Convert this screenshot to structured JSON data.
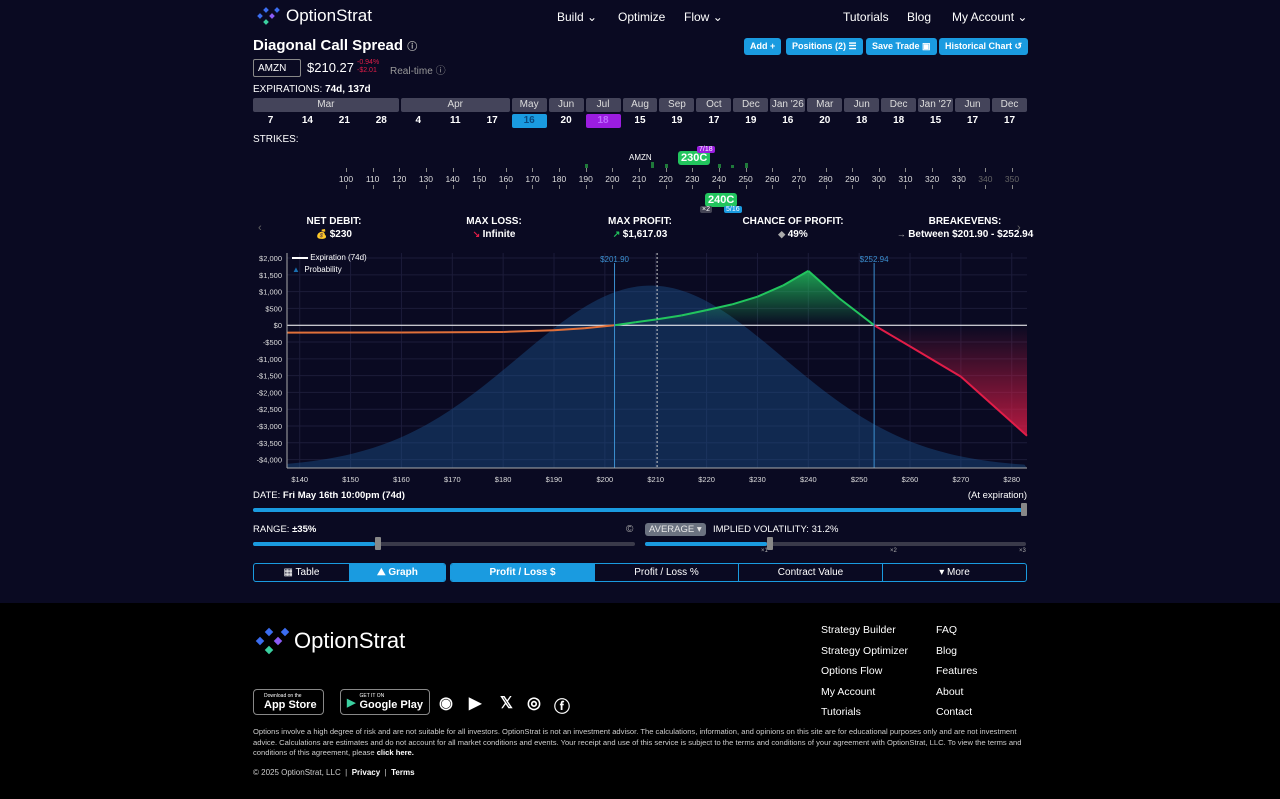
{
  "header": {
    "brand": "OptionStrat",
    "nav": [
      {
        "label": "Build",
        "chev": true
      },
      {
        "label": "Optimize"
      },
      {
        "label": "Flow",
        "chev": true
      }
    ],
    "right": [
      {
        "label": "Tutorials"
      },
      {
        "label": "Blog"
      },
      {
        "label": "My Account",
        "chev": true
      }
    ]
  },
  "strategy": {
    "title": "Diagonal Call Spread",
    "actions": [
      "Add +",
      "Positions (2) ☰",
      "Save Trade ▣",
      "Historical Chart ↺"
    ]
  },
  "ticker": {
    "symbol": "AMZN",
    "price": "$210.27",
    "change_pct": "-0.94%",
    "change_abs": "-$2.01",
    "mode": "Real-time"
  },
  "expirations": {
    "label": "EXPIRATIONS:",
    "value": "74d, 137d",
    "months": [
      {
        "m": "Mar",
        "span": 4
      },
      {
        "m": "Apr",
        "span": 3
      },
      {
        "m": "May",
        "span": 1
      },
      {
        "m": "Jun",
        "span": 1
      },
      {
        "m": "Jul",
        "span": 1
      },
      {
        "m": "Aug",
        "span": 1
      },
      {
        "m": "Sep",
        "span": 1
      },
      {
        "m": "Oct",
        "span": 1
      },
      {
        "m": "Dec",
        "span": 1
      },
      {
        "m": "Jan '26",
        "span": 1
      },
      {
        "m": "Mar",
        "span": 1
      },
      {
        "m": "Jun",
        "span": 1
      },
      {
        "m": "Dec",
        "span": 1
      },
      {
        "m": "Jan '27",
        "span": 1
      },
      {
        "m": "Jun",
        "span": 1
      },
      {
        "m": "Dec",
        "span": 1
      }
    ],
    "days": [
      "7",
      "14",
      "21",
      "28",
      "4",
      "11",
      "17",
      "16",
      "20",
      "18",
      "15",
      "19",
      "17",
      "19",
      "16",
      "20",
      "18",
      "18",
      "15",
      "17",
      "17"
    ],
    "selected": {
      "7": "#1a9be0",
      "9": "#9b1de0"
    }
  },
  "strikes": {
    "label": "STRIKES:",
    "values": [
      100,
      110,
      120,
      130,
      140,
      150,
      160,
      170,
      180,
      190,
      200,
      210,
      220,
      230,
      240,
      250,
      260,
      270,
      280,
      290,
      300,
      310,
      320,
      330,
      340,
      350
    ],
    "underlying": "AMZN",
    "long_leg": "230C",
    "long_exp": "7/18",
    "short_leg": "240C",
    "short_qty": "×2",
    "short_exp": "5/16"
  },
  "stats": [
    {
      "label": "NET DEBIT:",
      "value": "$230",
      "icon": "coins-icon",
      "glyph": "💰"
    },
    {
      "label": "MAX LOSS:",
      "value": "Infinite",
      "icon": "arrow-down-icon",
      "glyph": "↘"
    },
    {
      "label": "MAX PROFIT:",
      "value": "$1,617.03",
      "icon": "arrow-up-icon",
      "glyph": "↗"
    },
    {
      "label": "CHANCE OF PROFIT:",
      "value": "49%",
      "icon": "dice-icon",
      "glyph": "◆"
    },
    {
      "label": "BREAKEVENS:",
      "value": "Between $201.90 - $252.94",
      "icon": "arrow-right-icon",
      "glyph": "→"
    }
  ],
  "chart_data": {
    "type": "line",
    "legend": [
      "Expiration (74d)",
      "Probability"
    ],
    "xlim": [
      137.5,
      283
    ],
    "ylim": [
      -4250,
      2150
    ],
    "yticks": [
      2000,
      1500,
      1000,
      500,
      0,
      -500,
      -1000,
      -1500,
      -2000,
      -2500,
      -3000,
      -3500,
      -4000
    ],
    "ytick_labels": [
      "$2,000",
      "$1,500",
      "$1,000",
      "$500",
      "$0",
      "-$500",
      "-$1,000",
      "-$1,500",
      "-$2,000",
      "-$2,500",
      "-$3,000",
      "-$3,500",
      "-$4,000"
    ],
    "xticks": [
      140,
      150,
      160,
      170,
      180,
      190,
      200,
      210,
      220,
      230,
      240,
      250,
      260,
      270,
      280
    ],
    "xtick_labels": [
      "$140",
      "$150",
      "$160",
      "$170",
      "$180",
      "$190",
      "$200",
      "$210",
      "$220",
      "$230",
      "$240",
      "$250",
      "$260",
      "$270",
      "$280"
    ],
    "pl_x": [
      137.5,
      160,
      180,
      190,
      196,
      201.9,
      206,
      210,
      215,
      220,
      225,
      230,
      235,
      240,
      246,
      252.94,
      260,
      270,
      283
    ],
    "pl_y": [
      -220,
      -215,
      -200,
      -150,
      -90,
      0,
      90,
      170,
      290,
      450,
      620,
      850,
      1180,
      1617,
      810,
      0,
      -630,
      -1530,
      -3290
    ],
    "prob_center": 209,
    "prob_sigma": 26,
    "prob_peak": 1180,
    "prob_base": -4250,
    "breakevens": [
      {
        "x": 201.9,
        "label": "$201.90"
      },
      {
        "x": 252.94,
        "label": "$252.94"
      }
    ],
    "current_price": 210.27
  },
  "date": {
    "label": "DATE:",
    "value": "Fri May 16th 10:00pm (74d)",
    "right": "(At expiration)",
    "progress": 1.0
  },
  "range": {
    "label": "RANGE:",
    "value": "±35%",
    "fraction": 0.32
  },
  "iv": {
    "mode": "AVERAGE ▾",
    "label": "IMPLIED VOLATILITY:",
    "value": "31.2%",
    "fraction": 0.32,
    "marks": [
      "×1",
      "×2",
      "×3"
    ]
  },
  "view_tabs": [
    "▦ Table",
    "⛰ Graph"
  ],
  "value_tabs": [
    "Profit / Loss $",
    "Profit / Loss %",
    "Contract Value",
    "▾ More"
  ],
  "footer": {
    "brand": "OptionStrat",
    "col1": [
      "Strategy Builder",
      "Strategy Optimizer",
      "Options Flow",
      "My Account",
      "Tutorials"
    ],
    "col2": [
      "FAQ",
      "Blog",
      "Features",
      "About",
      "Contact"
    ],
    "appstore_small": "Download on the",
    "appstore": "App Store",
    "play_small": "GET IT ON",
    "play": "Google Play",
    "disclaimer": "Options involve a high degree of risk and are not suitable for all investors. OptionStrat is not an investment advisor. The calculations, information, and opinions on this site are for educational purposes only and are not investment advice. Calculations are estimates and do not account for all market conditions and events. Your receipt and use of this service is subject to the terms and conditions of your agreement with OptionStrat, LLC. To view the terms and conditions of this agreement, please",
    "click_here": "click here.",
    "copyright": "© 2025 OptionStrat, LLC",
    "privacy": "Privacy",
    "terms": "Terms"
  },
  "colors": {
    "accent": "#1a9be0",
    "profit": "#22c55e",
    "loss": "#e11d48",
    "purple": "#9b1de0"
  }
}
